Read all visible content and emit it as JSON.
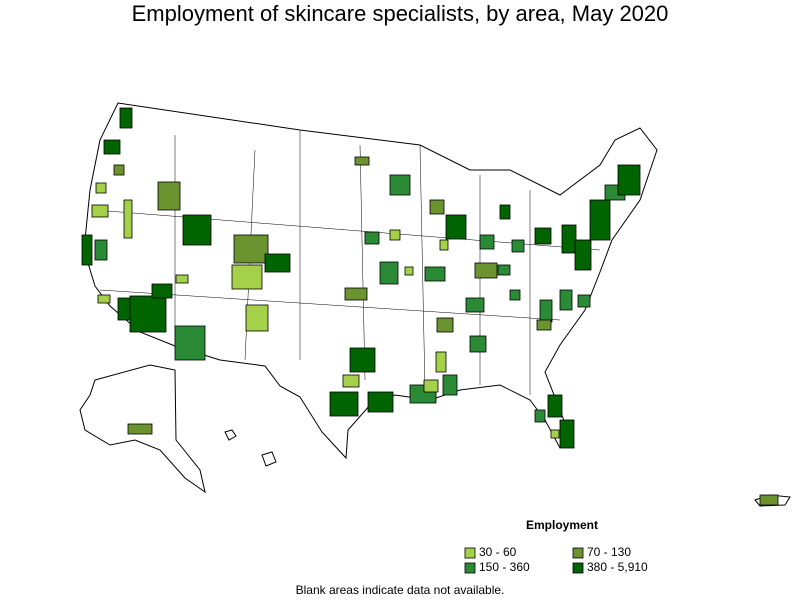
{
  "title": "Employment of skincare specialists, by area, May 2020",
  "legend": {
    "title": "Employment",
    "items": [
      {
        "label": "30 - 60",
        "color": "#a4d04a"
      },
      {
        "label": "70 - 130",
        "color": "#6b9330"
      },
      {
        "label": "150 - 360",
        "color": "#2a8a36"
      },
      {
        "label": "380 - 5,910",
        "color": "#006400"
      }
    ]
  },
  "footnote": "Blank areas indicate data not available."
}
